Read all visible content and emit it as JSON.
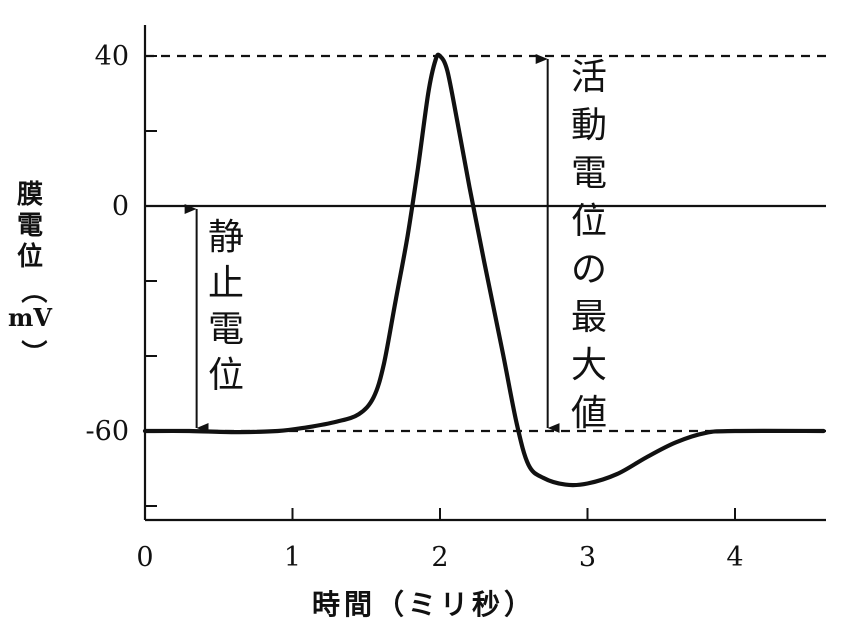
{
  "chart_data": {
    "type": "line",
    "title": "",
    "xlabel": "時間（ミリ秒）",
    "ylabel": [
      "膜",
      "電",
      "位",
      "（",
      "mV",
      "）"
    ],
    "xlim": [
      0,
      4.6
    ],
    "ylim": [
      -84,
      56
    ],
    "xticks": [
      0,
      1,
      2,
      3,
      4
    ],
    "yticks": [
      40,
      0,
      -60
    ],
    "yticks_minor": [
      20,
      -20,
      -40,
      -80
    ],
    "grid": false,
    "series": [
      {
        "points": [
          [
            0,
            -60
          ],
          [
            0.3,
            -60
          ],
          [
            0.6,
            -60.3
          ],
          [
            0.9,
            -60
          ],
          [
            1.1,
            -59
          ],
          [
            1.3,
            -57.5
          ],
          [
            1.45,
            -55.5
          ],
          [
            1.55,
            -51
          ],
          [
            1.62,
            -42
          ],
          [
            1.7,
            -25
          ],
          [
            1.78,
            -8
          ],
          [
            1.85,
            10
          ],
          [
            1.92,
            30
          ],
          [
            1.97,
            39
          ],
          [
            2.0,
            40
          ],
          [
            2.05,
            36
          ],
          [
            2.12,
            22
          ],
          [
            2.2,
            5
          ],
          [
            2.3,
            -15
          ],
          [
            2.42,
            -38
          ],
          [
            2.52,
            -58
          ],
          [
            2.6,
            -69
          ],
          [
            2.7,
            -72.5
          ],
          [
            2.85,
            -74.3
          ],
          [
            3.0,
            -74
          ],
          [
            3.2,
            -71.5
          ],
          [
            3.4,
            -67
          ],
          [
            3.6,
            -63
          ],
          [
            3.8,
            -60.5
          ],
          [
            4.0,
            -60
          ],
          [
            4.6,
            -60
          ]
        ]
      }
    ],
    "reference_lines": [
      {
        "y": 40,
        "style": "dashed"
      },
      {
        "y": 0,
        "style": "solid"
      },
      {
        "y": -60,
        "style": "dashed"
      }
    ],
    "annotations": [
      {
        "label": [
          "静",
          "止",
          "電",
          "位"
        ],
        "from": 0,
        "to": -60,
        "at_x": 0.35
      },
      {
        "label": [
          "活",
          "動",
          "電",
          "位",
          "の",
          "最",
          "大",
          "値"
        ],
        "from": 40,
        "to": -60,
        "at_x": 2.73
      }
    ]
  }
}
